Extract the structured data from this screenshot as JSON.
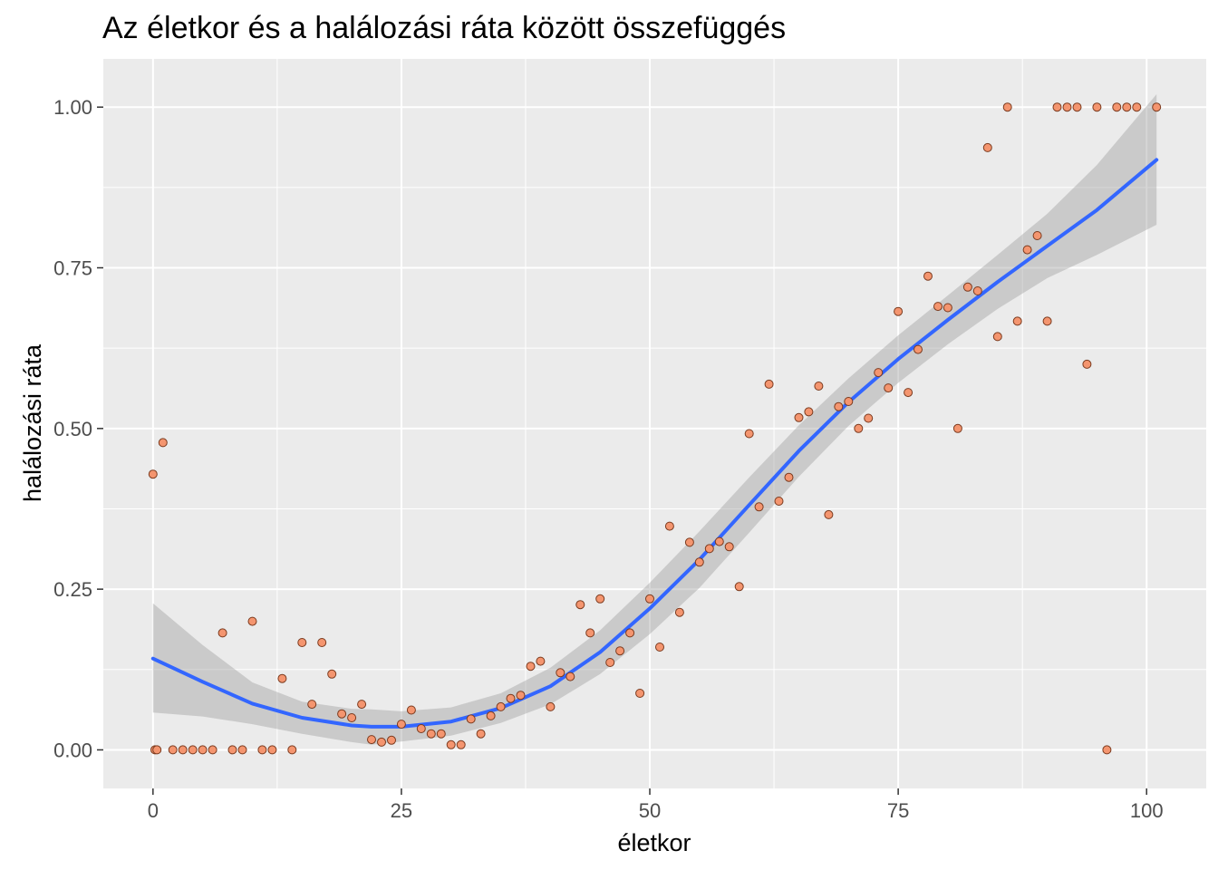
{
  "chart_data": {
    "type": "scatter",
    "title": "Az életkor és a halálozási ráta között összefüggés",
    "xlabel": "életkor",
    "ylabel": "halálozási ráta",
    "xlim": [
      -5,
      106
    ],
    "ylim": [
      -0.06,
      1.075
    ],
    "x_ticks": [
      0,
      25,
      50,
      75,
      100
    ],
    "x_tick_labels": [
      "0",
      "25",
      "50",
      "75",
      "100"
    ],
    "y_ticks": [
      0,
      0.25,
      0.5,
      0.75,
      1
    ],
    "y_tick_labels": [
      "0.00",
      "0.25",
      "0.50",
      "0.75",
      "1.00"
    ],
    "grid": true,
    "point_fill": "#f4956f",
    "point_stroke": "#7a3a1e",
    "smooth_line_color": "#3366ff",
    "ribbon_color": "#999999",
    "panel_background": "#ebebeb",
    "points": [
      [
        0,
        0.429
      ],
      [
        0.2,
        0.0
      ],
      [
        0.4,
        0.0
      ],
      [
        1,
        0.478
      ],
      [
        2,
        0.0
      ],
      [
        3,
        0.0
      ],
      [
        4,
        0.0
      ],
      [
        5,
        0.0
      ],
      [
        6,
        0.0
      ],
      [
        7,
        0.182
      ],
      [
        8,
        0.0
      ],
      [
        9,
        0.0
      ],
      [
        10,
        0.2
      ],
      [
        11,
        0.0
      ],
      [
        12,
        0.0
      ],
      [
        13,
        0.111
      ],
      [
        14,
        0.0
      ],
      [
        15,
        0.167
      ],
      [
        16,
        0.071
      ],
      [
        17,
        0.167
      ],
      [
        18,
        0.118
      ],
      [
        19,
        0.056
      ],
      [
        20,
        0.05
      ],
      [
        21,
        0.071
      ],
      [
        22,
        0.016
      ],
      [
        23,
        0.012
      ],
      [
        24,
        0.015
      ],
      [
        25,
        0.04
      ],
      [
        26,
        0.062
      ],
      [
        27,
        0.033
      ],
      [
        28,
        0.025
      ],
      [
        29,
        0.025
      ],
      [
        30,
        0.008
      ],
      [
        31,
        0.008
      ],
      [
        32,
        0.048
      ],
      [
        33,
        0.025
      ],
      [
        34,
        0.053
      ],
      [
        35,
        0.067
      ],
      [
        36,
        0.08
      ],
      [
        37,
        0.085
      ],
      [
        38,
        0.13
      ],
      [
        39,
        0.138
      ],
      [
        40,
        0.067
      ],
      [
        41,
        0.12
      ],
      [
        42,
        0.114
      ],
      [
        43,
        0.226
      ],
      [
        44,
        0.182
      ],
      [
        45,
        0.235
      ],
      [
        46,
        0.136
      ],
      [
        47,
        0.154
      ],
      [
        48,
        0.182
      ],
      [
        49,
        0.088
      ],
      [
        50,
        0.235
      ],
      [
        51,
        0.16
      ],
      [
        52,
        0.348
      ],
      [
        53,
        0.214
      ],
      [
        54,
        0.323
      ],
      [
        55,
        0.292
      ],
      [
        56,
        0.313
      ],
      [
        57,
        0.324
      ],
      [
        58,
        0.316
      ],
      [
        59,
        0.254
      ],
      [
        60,
        0.492
      ],
      [
        61,
        0.378
      ],
      [
        62,
        0.569
      ],
      [
        63,
        0.387
      ],
      [
        64,
        0.424
      ],
      [
        65,
        0.517
      ],
      [
        66,
        0.526
      ],
      [
        67,
        0.566
      ],
      [
        68,
        0.366
      ],
      [
        69,
        0.534
      ],
      [
        70,
        0.542
      ],
      [
        71,
        0.5
      ],
      [
        72,
        0.516
      ],
      [
        73,
        0.587
      ],
      [
        74,
        0.563
      ],
      [
        75,
        0.682
      ],
      [
        76,
        0.556
      ],
      [
        77,
        0.623
      ],
      [
        78,
        0.737
      ],
      [
        79,
        0.69
      ],
      [
        80,
        0.688
      ],
      [
        81,
        0.5
      ],
      [
        82,
        0.72
      ],
      [
        83,
        0.714
      ],
      [
        84,
        0.937
      ],
      [
        85,
        0.643
      ],
      [
        86,
        1.0
      ],
      [
        87,
        0.667
      ],
      [
        88,
        0.778
      ],
      [
        89,
        0.8
      ],
      [
        90,
        0.667
      ],
      [
        91,
        1.0
      ],
      [
        92,
        1.0
      ],
      [
        93,
        1.0
      ],
      [
        94,
        0.6
      ],
      [
        95,
        1.0
      ],
      [
        96,
        0.0
      ],
      [
        97,
        1.0
      ],
      [
        98,
        1.0
      ],
      [
        99,
        1.0
      ],
      [
        101,
        1.0
      ]
    ],
    "smooth": {
      "x": [
        0,
        5,
        10,
        15,
        20,
        22,
        25,
        30,
        35,
        40,
        45,
        50,
        55,
        60,
        65,
        70,
        75,
        80,
        85,
        90,
        95,
        101
      ],
      "y": [
        0.142,
        0.106,
        0.072,
        0.05,
        0.038,
        0.036,
        0.036,
        0.044,
        0.065,
        0.099,
        0.152,
        0.22,
        0.296,
        0.381,
        0.465,
        0.541,
        0.608,
        0.669,
        0.728,
        0.784,
        0.84,
        0.918
      ],
      "lower": [
        0.058,
        0.052,
        0.04,
        0.025,
        0.012,
        0.008,
        0.013,
        0.022,
        0.042,
        0.071,
        0.118,
        0.18,
        0.252,
        0.338,
        0.425,
        0.504,
        0.571,
        0.631,
        0.686,
        0.734,
        0.77,
        0.817
      ],
      "upper": [
        0.228,
        0.163,
        0.105,
        0.075,
        0.064,
        0.063,
        0.06,
        0.066,
        0.088,
        0.128,
        0.186,
        0.26,
        0.34,
        0.424,
        0.505,
        0.578,
        0.645,
        0.707,
        0.77,
        0.834,
        0.91,
        1.02
      ]
    }
  }
}
